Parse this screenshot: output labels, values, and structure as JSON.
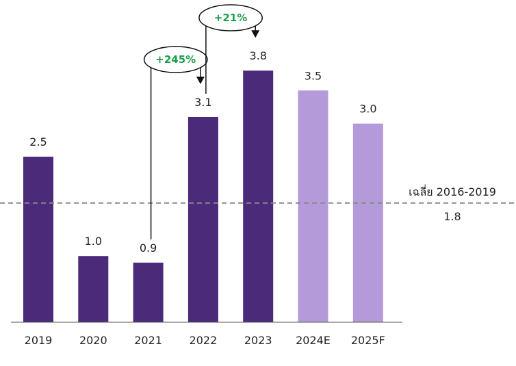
{
  "chart_data": {
    "type": "bar",
    "categories": [
      "2019",
      "2020",
      "2021",
      "2022",
      "2023",
      "2024E",
      "2025F"
    ],
    "values": [
      2.5,
      1.0,
      0.9,
      3.1,
      3.8,
      3.5,
      3.0
    ],
    "value_labels": [
      "2.5",
      "1.0",
      "0.9",
      "3.1",
      "3.8",
      "3.5",
      "3.0"
    ],
    "bar_colors": [
      "#4b2a7a",
      "#4b2a7a",
      "#4b2a7a",
      "#4b2a7a",
      "#4b2a7a",
      "#b59ad9",
      "#b59ad9"
    ],
    "ylim": [
      0,
      4.35
    ],
    "grid": false,
    "title": "",
    "xlabel": "",
    "ylabel": "",
    "reference_line": {
      "value": 1.8,
      "label": "เฉลี่ย 2016-2019",
      "value_label": "1.8",
      "color": "#888888"
    },
    "annotations": [
      {
        "text": "+245%",
        "from": "2021",
        "to": "2022",
        "color": "#1a9e4a"
      },
      {
        "text": "+21%",
        "from": "2022",
        "to": "2023",
        "color": "#1a9e4a"
      }
    ]
  }
}
